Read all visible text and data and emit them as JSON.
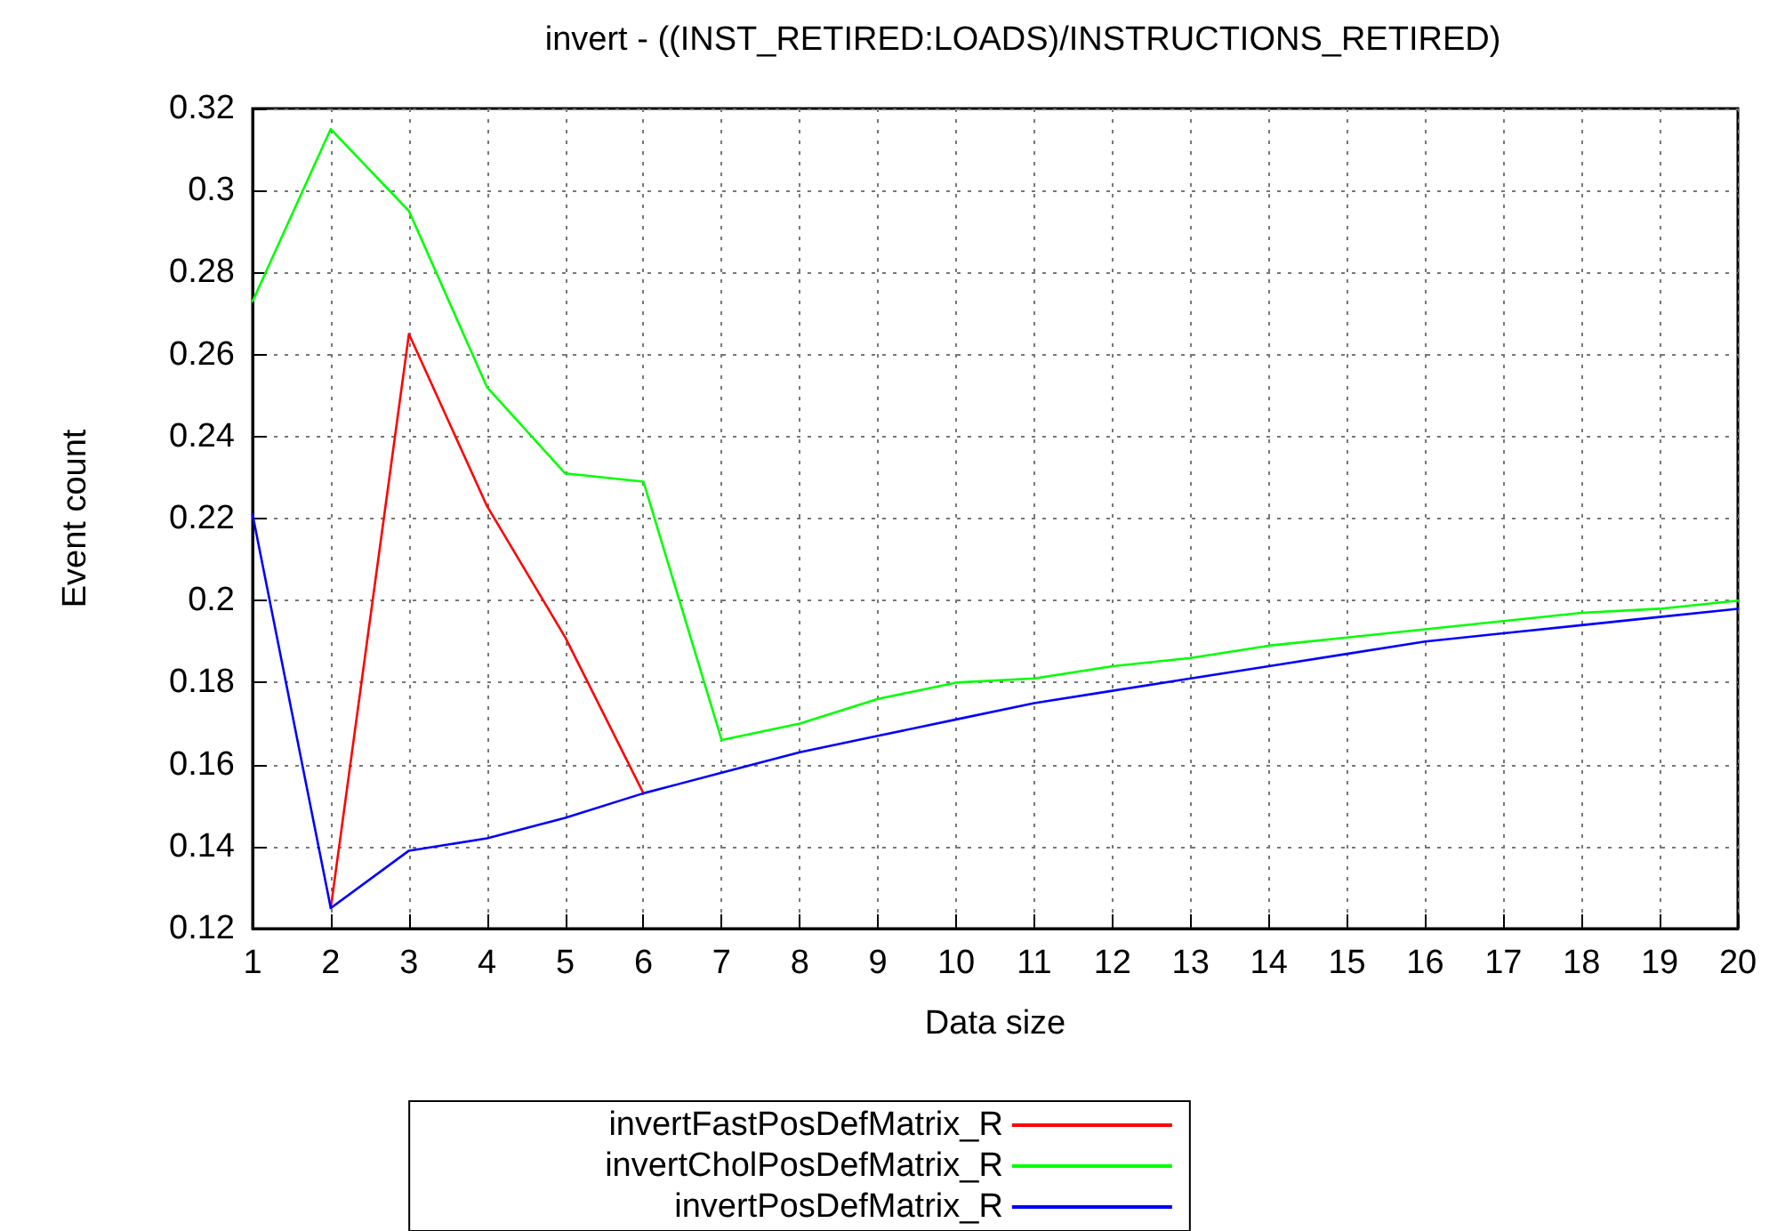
{
  "chart_data": {
    "type": "line",
    "title": "invert - ((INST_RETIRED:LOADS)/INSTRUCTIONS_RETIRED)",
    "xlabel": "Data size",
    "ylabel": "Event count",
    "x": [
      1,
      2,
      3,
      4,
      5,
      6,
      7,
      8,
      9,
      10,
      11,
      12,
      13,
      14,
      15,
      16,
      17,
      18,
      19,
      20
    ],
    "series": [
      {
        "name": "invertFastPosDefMatrix_R",
        "color": "#ff0000",
        "values": [
          null,
          0.125,
          0.265,
          0.223,
          0.191,
          0.153,
          null,
          null,
          null,
          null,
          null,
          null,
          null,
          null,
          null,
          null,
          null,
          null,
          null,
          null
        ]
      },
      {
        "name": "invertCholPosDefMatrix_R",
        "color": "#00ff00",
        "values": [
          0.273,
          0.315,
          0.295,
          0.252,
          0.231,
          0.229,
          0.166,
          0.17,
          0.176,
          0.18,
          0.181,
          0.184,
          0.186,
          0.189,
          0.191,
          0.193,
          0.195,
          0.197,
          0.198,
          0.2
        ]
      },
      {
        "name": "invertPosDefMatrix_R",
        "color": "#0000ff",
        "values": [
          0.221,
          0.125,
          0.139,
          0.142,
          0.147,
          0.153,
          0.158,
          0.163,
          0.167,
          0.171,
          0.175,
          0.178,
          0.181,
          0.184,
          0.187,
          0.19,
          0.192,
          0.194,
          0.196,
          0.198
        ]
      }
    ],
    "xlim": [
      1,
      20
    ],
    "xticks": [
      1,
      2,
      3,
      4,
      5,
      6,
      7,
      8,
      9,
      10,
      11,
      12,
      13,
      14,
      15,
      16,
      17,
      18,
      19,
      20
    ],
    "ylim": [
      0.12,
      0.32
    ],
    "yticks": [
      0.12,
      0.14,
      0.16,
      0.18,
      0.2,
      0.22,
      0.24,
      0.26,
      0.28,
      0.3,
      0.32
    ],
    "grid": true,
    "legend": "bottom",
    "marker": "none",
    "line_style": "solid"
  }
}
